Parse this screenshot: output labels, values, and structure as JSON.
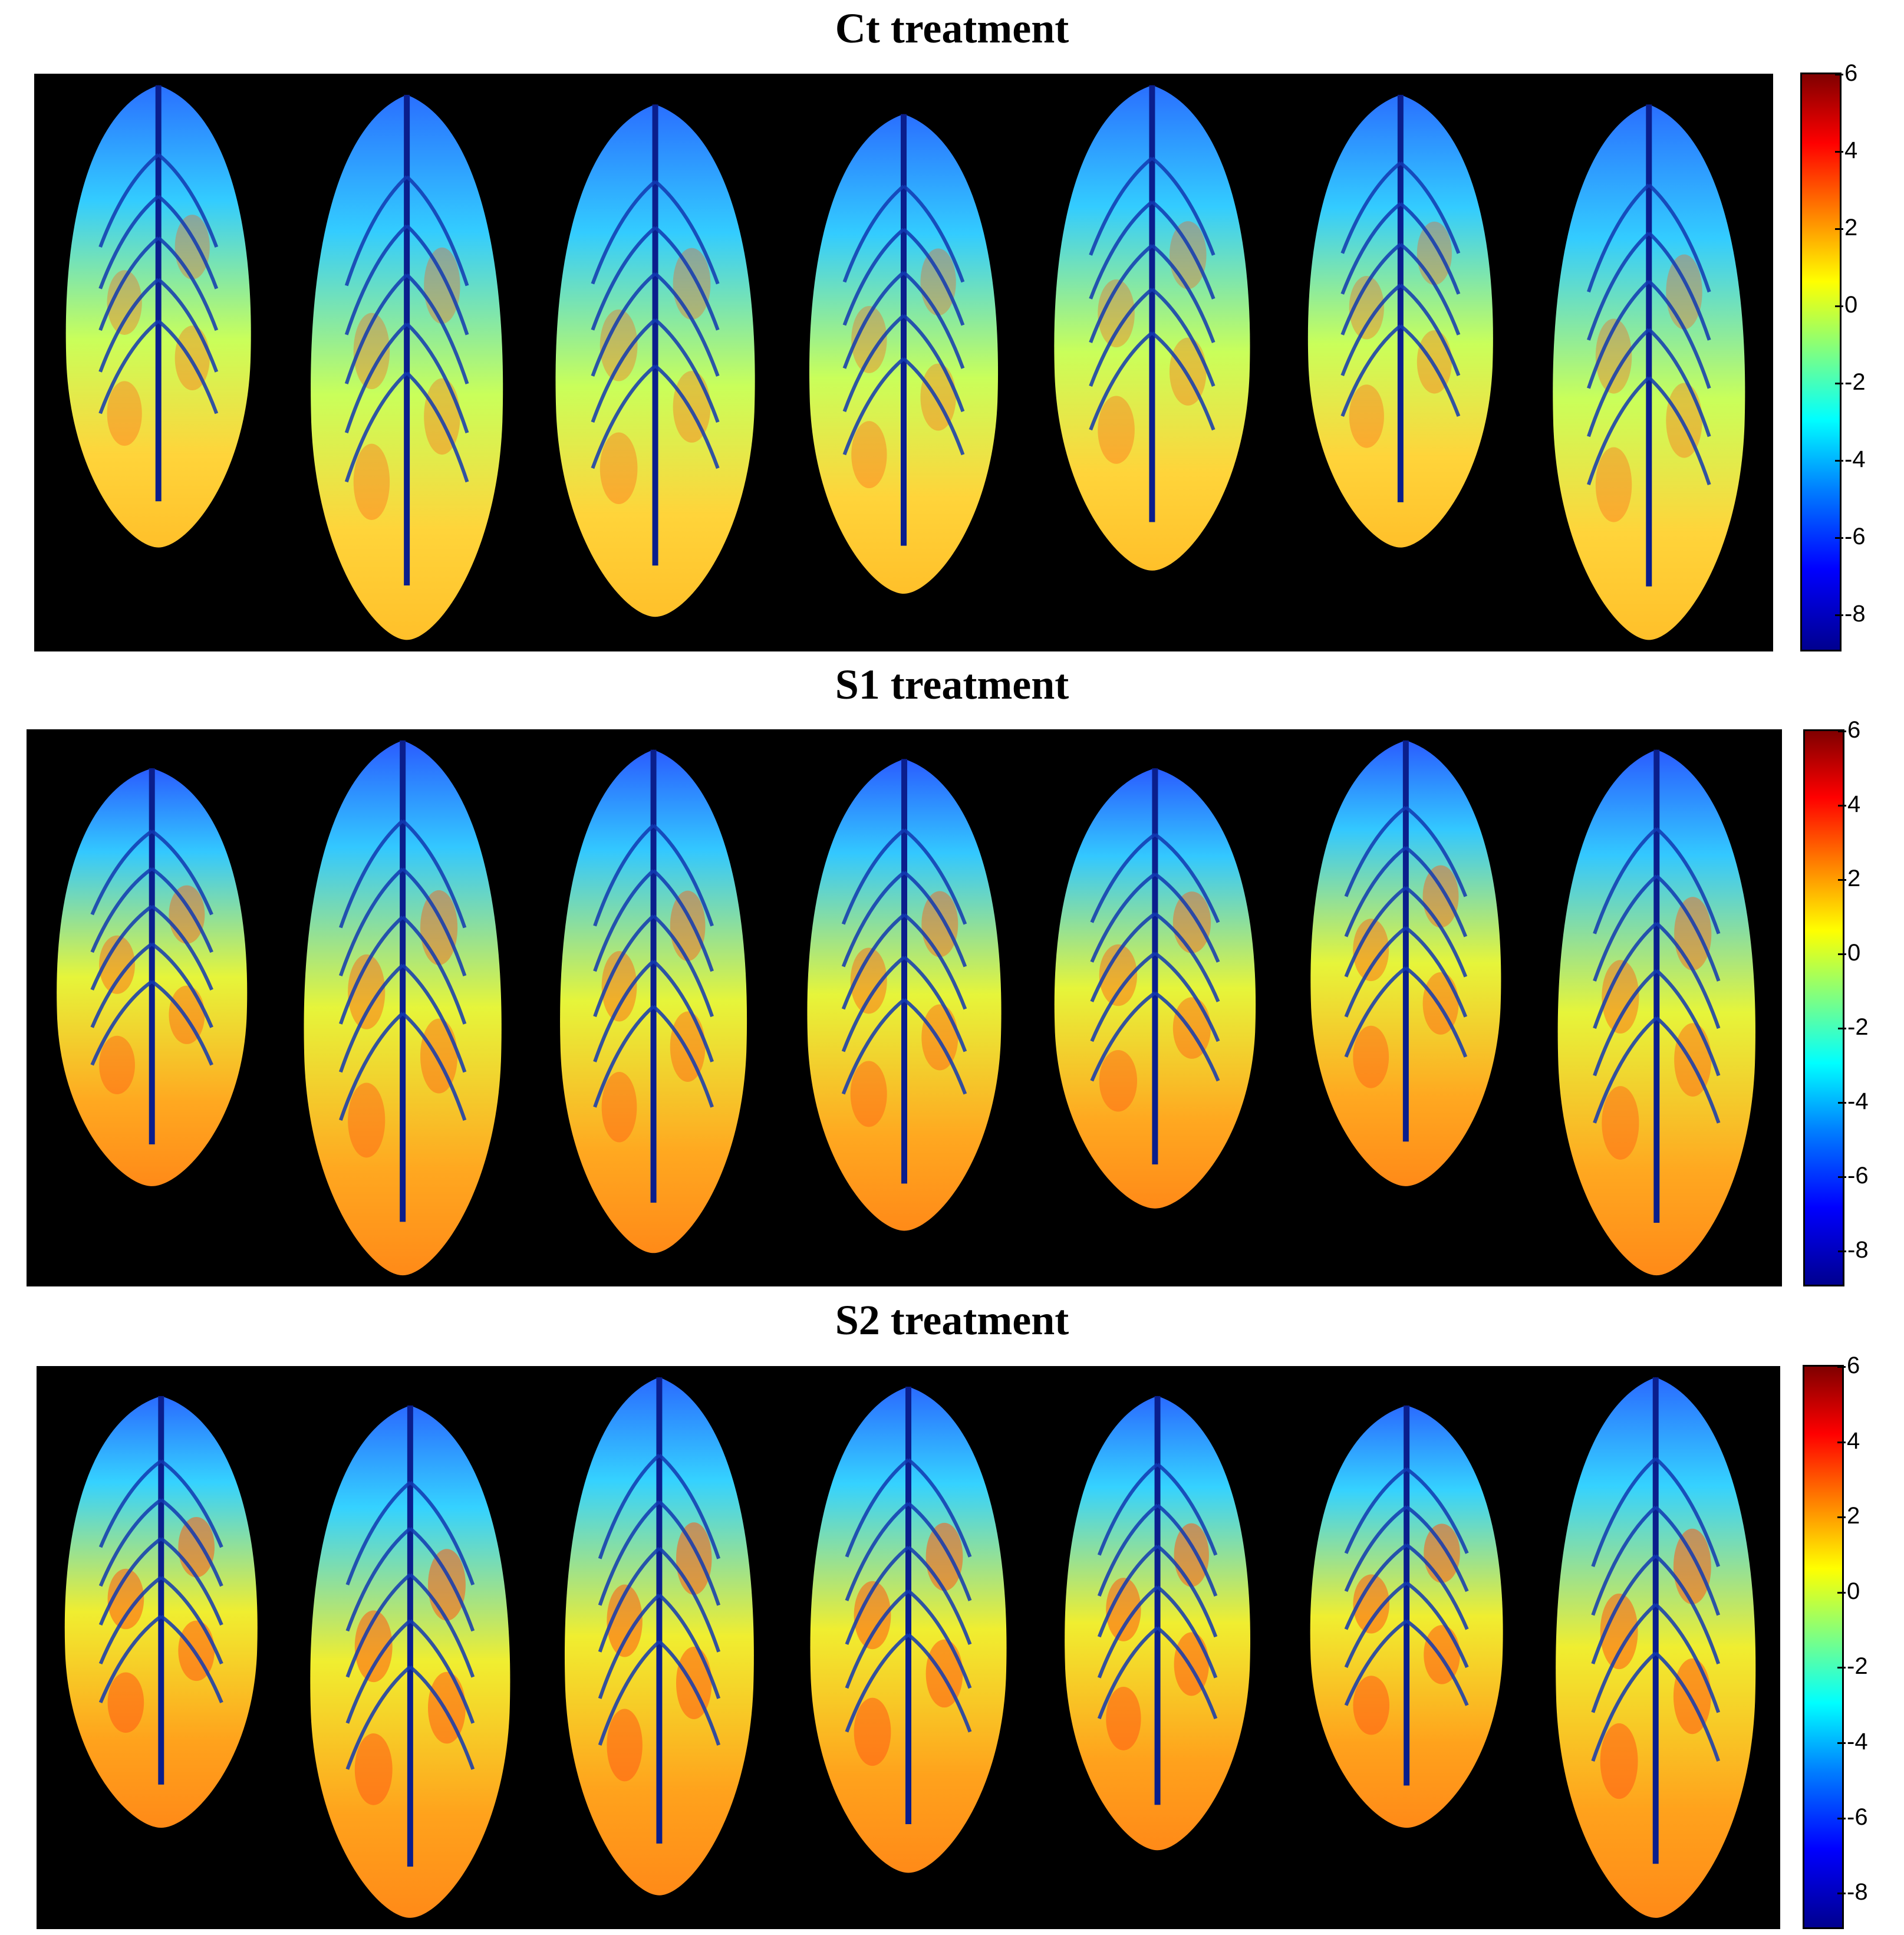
{
  "chart_data": [
    {
      "type": "heatmap",
      "title": "Ct treatment",
      "leaf_count": 7,
      "colorbar": {
        "min": -9,
        "max": 6,
        "ticks": [
          6,
          4,
          2,
          0,
          -2,
          -4,
          -6,
          -8
        ],
        "colormap": "jet"
      },
      "background_color": "#000000"
    },
    {
      "type": "heatmap",
      "title": "S1 treatment",
      "leaf_count": 7,
      "colorbar": {
        "min": -9,
        "max": 6,
        "ticks": [
          6,
          4,
          2,
          0,
          -2,
          -4,
          -6,
          -8
        ],
        "colormap": "jet"
      },
      "background_color": "#000000"
    },
    {
      "type": "heatmap",
      "title": "S2 treatment",
      "leaf_count": 7,
      "colorbar": {
        "min": -9,
        "max": 6,
        "ticks": [
          6,
          4,
          2,
          0,
          -2,
          -4,
          -6,
          -8
        ],
        "colormap": "jet"
      },
      "background_color": "#000000"
    }
  ]
}
